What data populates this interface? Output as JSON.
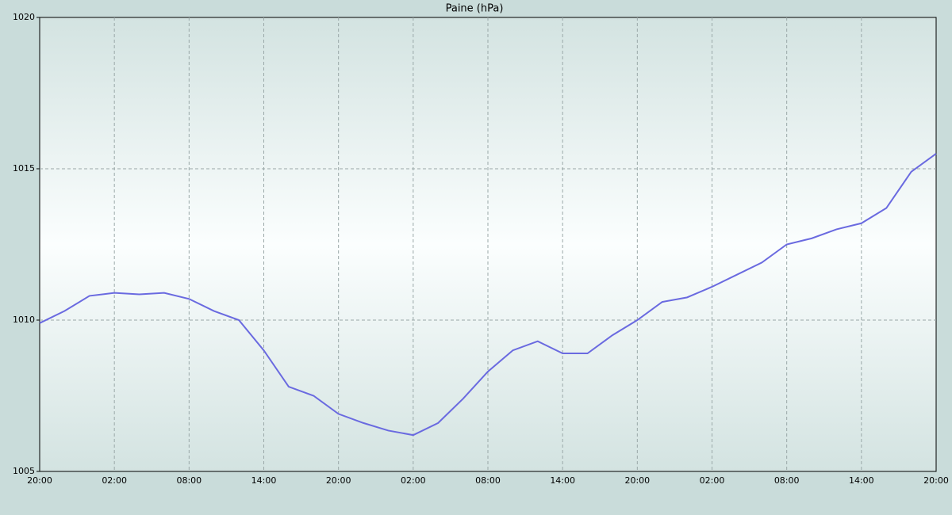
{
  "chart_data": {
    "type": "line",
    "title": "Paine (hPa)",
    "categories": [
      "20:00",
      null,
      null,
      "02:00",
      null,
      null,
      "08:00",
      null,
      null,
      "14:00",
      null,
      null,
      "20:00",
      null,
      null,
      "02:00",
      null,
      null,
      "08:00",
      null,
      null,
      "14:00",
      null,
      null,
      "20:00",
      null,
      null,
      "02:00",
      null,
      null,
      "08:00",
      null,
      null,
      "14:00",
      null,
      null,
      "20:00"
    ],
    "series": [
      {
        "name": "Paine",
        "color": "#6a6ae0",
        "values": [
          1009.9,
          1010.3,
          1010.8,
          1010.9,
          1010.85,
          1010.9,
          1010.7,
          1010.3,
          1010.0,
          1009.0,
          1007.8,
          1007.5,
          1006.9,
          1006.6,
          1006.35,
          1006.2,
          1006.6,
          1007.4,
          1008.3,
          1009.0,
          1009.3,
          1008.9,
          1008.9,
          1009.5,
          1010.0,
          1010.6,
          1010.75,
          1011.1,
          1011.5,
          1011.9,
          1012.5,
          1012.7,
          1013.0,
          1013.2,
          1013.7,
          1014.9,
          1015.5
        ]
      }
    ],
    "ylim": [
      1005,
      1020
    ],
    "yticks": [
      1005,
      1010,
      1015,
      1020
    ],
    "grid": true
  }
}
